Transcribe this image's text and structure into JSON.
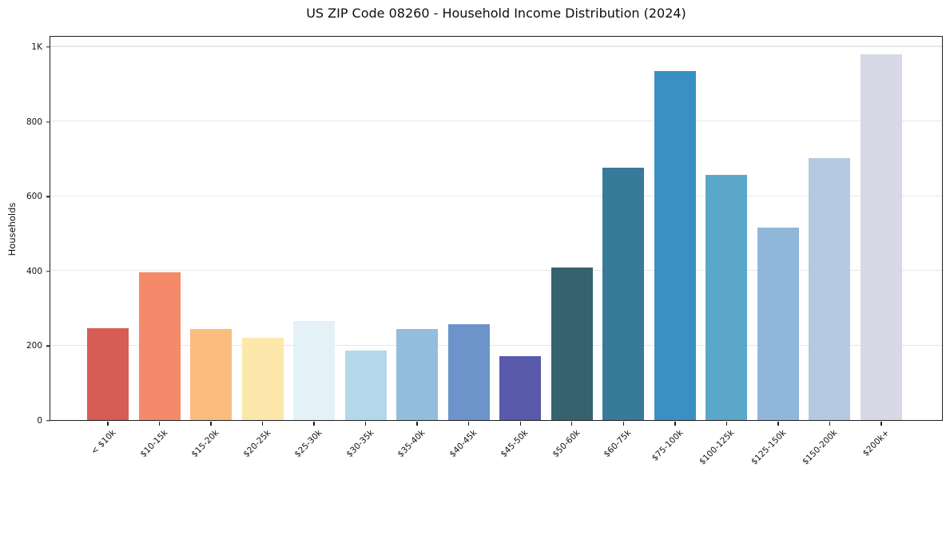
{
  "chart_data": {
    "type": "bar",
    "title": "US ZIP Code 08260 - Household Income Distribution (2024)",
    "xlabel": "",
    "ylabel": "Households",
    "categories": [
      "< $10k",
      "$10-15k",
      "$15-20k",
      "$20-25k",
      "$25-30k",
      "$30-35k",
      "$35-40k",
      "$40-45k",
      "$45-50k",
      "$50-60k",
      "$60-75k",
      "$75-100k",
      "$100-125k",
      "$125-150k",
      "$150-200k",
      "$200k+"
    ],
    "values": [
      246,
      396,
      244,
      221,
      266,
      187,
      243,
      256,
      172,
      409,
      676,
      934,
      657,
      514,
      701,
      979
    ],
    "bar_colors": [
      "#d75c55",
      "#f48a6a",
      "#fbbd7e",
      "#fce8ab",
      "#e4f2f7",
      "#b3d8ea",
      "#93bddd",
      "#6c94ca",
      "#5a5aac",
      "#36626f",
      "#377a9a",
      "#3a90c3",
      "#5ba7c9",
      "#90b6d9",
      "#b5c9e0",
      "#d8d9e6"
    ],
    "ylim": [
      0,
      1030
    ],
    "yticks": [
      {
        "value": 0,
        "label": "0"
      },
      {
        "value": 200,
        "label": "200"
      },
      {
        "value": 400,
        "label": "400"
      },
      {
        "value": 600,
        "label": "600"
      },
      {
        "value": 800,
        "label": "800"
      },
      {
        "value": 1000,
        "label": "1K"
      }
    ],
    "grid": "horizontal",
    "legend_position": "none",
    "x_tick_rotation_deg": 45
  },
  "colors": {
    "background": "#ffffff",
    "grid": "#e7e7e7",
    "spine": "#1f1f1f",
    "text": "#111111"
  }
}
